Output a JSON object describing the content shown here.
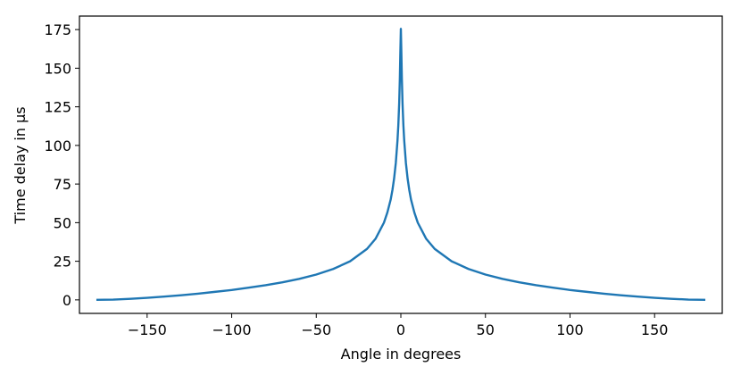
{
  "chart_data": {
    "type": "line",
    "title": "",
    "xlabel": "Angle in degrees",
    "ylabel": "Time delay in μs",
    "xlim": [
      -190,
      190
    ],
    "ylim": [
      -8.75,
      183.75
    ],
    "x_ticks": [
      -150,
      -100,
      -50,
      0,
      50,
      100,
      150
    ],
    "x_tick_labels": [
      "−150",
      "−100",
      "−50",
      "0",
      "50",
      "100",
      "150"
    ],
    "y_ticks": [
      0,
      25,
      50,
      75,
      100,
      125,
      150,
      175
    ],
    "y_tick_labels": [
      "0",
      "25",
      "50",
      "75",
      "100",
      "125",
      "150",
      "175"
    ],
    "grid": false,
    "legend": "none",
    "series": [
      {
        "color": "#1f77b4",
        "points": [
          [
            -180,
            0
          ],
          [
            -170,
            0.2
          ],
          [
            -160,
            0.7
          ],
          [
            -150,
            1.3
          ],
          [
            -140,
            2.1
          ],
          [
            -130,
            3.0
          ],
          [
            -120,
            4.0
          ],
          [
            -110,
            5.2
          ],
          [
            -100,
            6.4
          ],
          [
            -90,
            7.9
          ],
          [
            -80,
            9.5
          ],
          [
            -70,
            11.4
          ],
          [
            -60,
            13.6
          ],
          [
            -50,
            16.4
          ],
          [
            -40,
            20.0
          ],
          [
            -30,
            25.0
          ],
          [
            -20,
            33.0
          ],
          [
            -15,
            39.5
          ],
          [
            -10,
            50.0
          ],
          [
            -8,
            56.5
          ],
          [
            -6,
            65.0
          ],
          [
            -5,
            71.0
          ],
          [
            -4,
            78.5
          ],
          [
            -3,
            88.5
          ],
          [
            -2,
            103.0
          ],
          [
            -1.5,
            113.0
          ],
          [
            -1,
            127.0
          ],
          [
            -0.6,
            143.0
          ],
          [
            -0.3,
            160.0
          ],
          [
            0,
            175.5
          ],
          [
            0.3,
            160.0
          ],
          [
            0.6,
            143.0
          ],
          [
            1,
            127.0
          ],
          [
            1.5,
            113.0
          ],
          [
            2,
            103.0
          ],
          [
            3,
            88.5
          ],
          [
            4,
            78.5
          ],
          [
            5,
            71.0
          ],
          [
            6,
            65.0
          ],
          [
            8,
            56.5
          ],
          [
            10,
            50.0
          ],
          [
            15,
            39.5
          ],
          [
            20,
            33.0
          ],
          [
            30,
            25.0
          ],
          [
            40,
            20.0
          ],
          [
            50,
            16.4
          ],
          [
            60,
            13.6
          ],
          [
            70,
            11.4
          ],
          [
            80,
            9.5
          ],
          [
            90,
            7.9
          ],
          [
            100,
            6.4
          ],
          [
            110,
            5.2
          ],
          [
            120,
            4.0
          ],
          [
            130,
            3.0
          ],
          [
            140,
            2.1
          ],
          [
            150,
            1.3
          ],
          [
            160,
            0.7
          ],
          [
            170,
            0.2
          ],
          [
            180,
            0
          ]
        ]
      }
    ]
  }
}
